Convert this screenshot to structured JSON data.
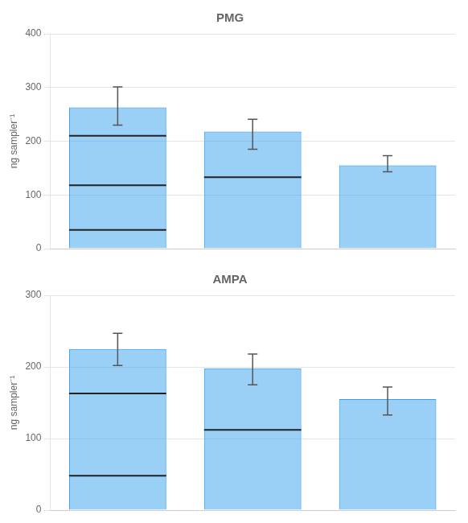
{
  "chart_data": [
    {
      "type": "bar",
      "title": "PMG",
      "ylabel": "ng sampler⁻¹",
      "categories": [
        null,
        null,
        null
      ],
      "values": [
        263,
        218,
        155
      ],
      "errors_up": [
        38,
        23,
        18
      ],
      "errors_down": [
        33,
        33,
        12
      ],
      "bar_lines": [
        [
          35,
          118,
          210
        ],
        [
          133
        ],
        []
      ],
      "ylim": [
        0,
        400
      ],
      "yticks": [
        0,
        100,
        200,
        300,
        400
      ],
      "grid": true,
      "tick_labels": "y"
    },
    {
      "type": "bar",
      "title": "AMPA",
      "ylabel": "ng sampler⁻¹",
      "categories": [
        null,
        null,
        null
      ],
      "values": [
        225,
        198,
        155
      ],
      "errors_up": [
        22,
        20,
        17
      ],
      "errors_down": [
        23,
        23,
        22
      ],
      "bar_lines": [
        [
          48,
          163
        ],
        [
          112
        ],
        []
      ],
      "ylim": [
        0,
        300
      ],
      "yticks": [
        0,
        100,
        200,
        300
      ],
      "grid": true,
      "tick_labels": "y"
    }
  ]
}
